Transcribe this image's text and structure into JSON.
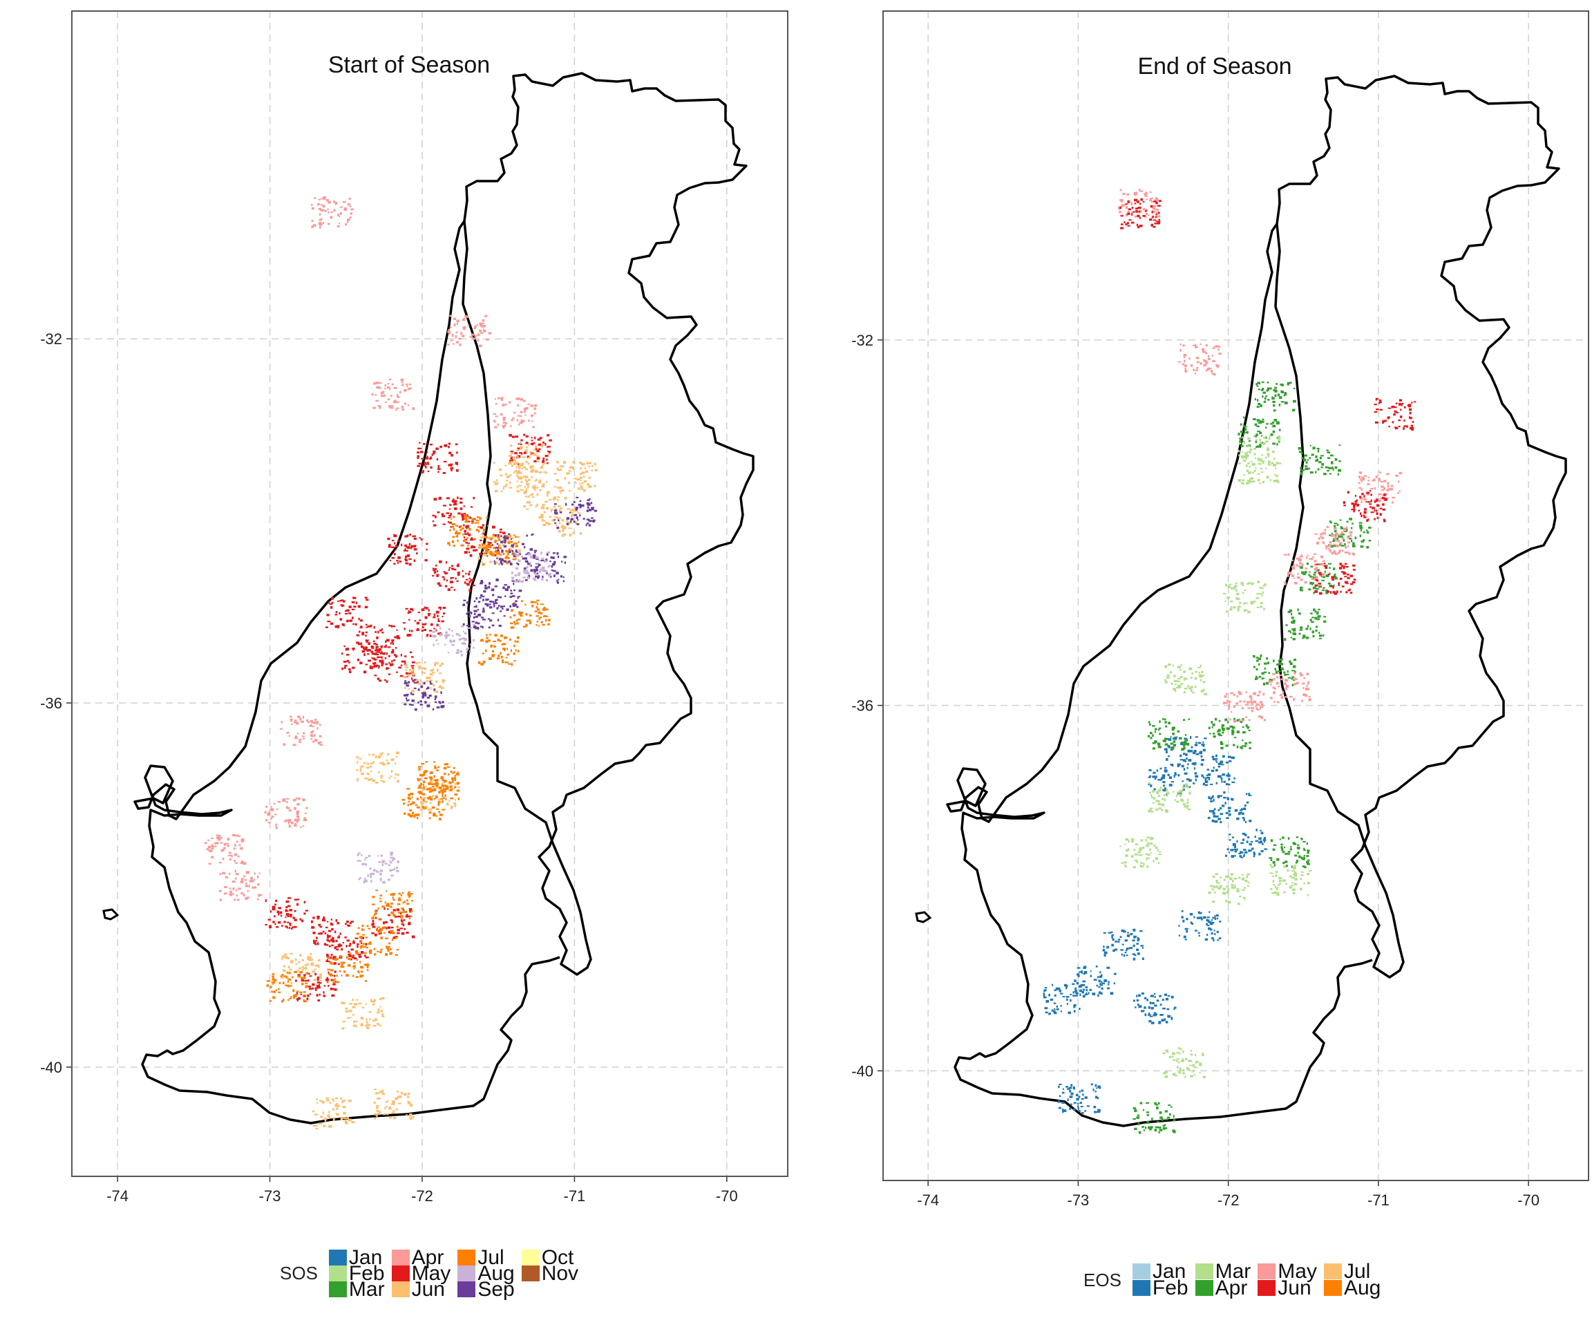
{
  "chart_data": [
    {
      "type": "scatter",
      "title": "Start of Season",
      "xlabel": "",
      "ylabel": "",
      "xlim": [
        -74.3,
        -69.6
      ],
      "ylim": [
        -41.2,
        -28.4
      ],
      "xticks": [
        -74,
        -73,
        -72,
        -71,
        -70
      ],
      "yticks": [
        -32,
        -36,
        -40
      ],
      "xtick_labels": [
        "-74",
        "-73",
        "-72",
        "-71",
        "-70"
      ],
      "ytick_labels": [
        "-32",
        "-36",
        "-40"
      ],
      "grid": true,
      "legend": {
        "title": "SOS",
        "position": "bottom",
        "items": [
          {
            "label": "Jan",
            "color": "#1F78B4"
          },
          {
            "label": "Feb",
            "color": "#B2DF8A"
          },
          {
            "label": "Mar",
            "color": "#33A02C"
          },
          {
            "label": "Apr",
            "color": "#FB9A99"
          },
          {
            "label": "May",
            "color": "#E31A1C"
          },
          {
            "label": "Jun",
            "color": "#FDBF6F"
          },
          {
            "label": "Jul",
            "color": "#FF7F00"
          },
          {
            "label": "Aug",
            "color": "#CAB2D6"
          },
          {
            "label": "Sep",
            "color": "#6A3D9A"
          },
          {
            "label": "Oct",
            "color": "#FFFF99"
          },
          {
            "label": "Nov",
            "color": "#B15928"
          }
        ]
      },
      "series": [
        {
          "name": "May",
          "color": "#E31A1C",
          "points": [
            [
              -72.1,
              -34.3
            ],
            [
              -71.8,
              -34.6
            ],
            [
              -72.5,
              -35.0
            ],
            [
              -72.3,
              -35.3
            ],
            [
              -72.4,
              -35.5
            ],
            [
              -72.2,
              -35.6
            ],
            [
              -72.0,
              -35.1
            ],
            [
              -71.9,
              -33.3
            ],
            [
              -71.8,
              -33.9
            ],
            [
              -72.9,
              -38.3
            ],
            [
              -72.6,
              -38.5
            ],
            [
              -72.2,
              -38.4
            ],
            [
              -72.7,
              -39.1
            ],
            [
              -72.5,
              -38.7
            ],
            [
              -71.6,
              -34.2
            ],
            [
              -71.3,
              -33.2
            ]
          ]
        },
        {
          "name": "Jun",
          "color": "#FDBF6F",
          "points": [
            [
              -71.2,
              -33.7
            ],
            [
              -71.1,
              -34.0
            ],
            [
              -71.4,
              -33.5
            ],
            [
              -71.5,
              -34.3
            ],
            [
              -72.0,
              -35.7
            ],
            [
              -72.3,
              -36.7
            ],
            [
              -71.9,
              -37.0
            ],
            [
              -72.8,
              -38.9
            ],
            [
              -72.4,
              -39.4
            ],
            [
              -72.2,
              -40.4
            ],
            [
              -72.6,
              -40.5
            ],
            [
              -71.0,
              -33.5
            ],
            [
              -71.3,
              -33.3
            ]
          ]
        },
        {
          "name": "Jul",
          "color": "#FF7F00",
          "points": [
            [
              -71.9,
              -36.8
            ],
            [
              -71.9,
              -36.9
            ],
            [
              -72.0,
              -37.1
            ],
            [
              -72.3,
              -38.6
            ],
            [
              -72.5,
              -38.9
            ],
            [
              -72.9,
              -39.1
            ],
            [
              -71.5,
              -34.3
            ],
            [
              -71.3,
              -35.0
            ],
            [
              -71.5,
              -35.4
            ],
            [
              -72.2,
              -38.2
            ],
            [
              -71.7,
              -34.1
            ]
          ]
        },
        {
          "name": "Apr",
          "color": "#FB9A99",
          "points": [
            [
              -72.6,
              -30.6
            ],
            [
              -71.7,
              -31.9
            ],
            [
              -72.2,
              -32.6
            ],
            [
              -71.4,
              -32.8
            ],
            [
              -72.8,
              -36.3
            ],
            [
              -73.3,
              -37.6
            ],
            [
              -73.2,
              -38.0
            ],
            [
              -72.9,
              -37.2
            ]
          ]
        },
        {
          "name": "Sep",
          "color": "#6A3D9A",
          "points": [
            [
              -71.4,
              -34.3
            ],
            [
              -71.6,
              -35.0
            ],
            [
              -71.5,
              -34.8
            ],
            [
              -72.0,
              -35.9
            ],
            [
              -71.2,
              -34.5
            ],
            [
              -71.0,
              -33.9
            ]
          ]
        },
        {
          "name": "Aug",
          "color": "#CAB2D6",
          "points": [
            [
              -71.3,
              -34.5
            ],
            [
              -71.8,
              -35.3
            ],
            [
              -72.3,
              -37.8
            ]
          ]
        }
      ]
    },
    {
      "type": "scatter",
      "title": "End of Season",
      "xlabel": "",
      "ylabel": "",
      "xlim": [
        -74.3,
        -69.6
      ],
      "ylim": [
        -41.2,
        -28.4
      ],
      "xticks": [
        -74,
        -73,
        -72,
        -71,
        -70
      ],
      "yticks": [
        -32,
        -36,
        -40
      ],
      "xtick_labels": [
        "-74",
        "-73",
        "-72",
        "-71",
        "-70"
      ],
      "ytick_labels": [
        "-32",
        "-36",
        "-40"
      ],
      "grid": true,
      "legend": {
        "title": "EOS",
        "position": "bottom",
        "items": [
          {
            "label": "Jan",
            "color": "#A6CEE3"
          },
          {
            "label": "Feb",
            "color": "#1F78B4"
          },
          {
            "label": "Mar",
            "color": "#B2DF8A"
          },
          {
            "label": "Apr",
            "color": "#33A02C"
          },
          {
            "label": "May",
            "color": "#FB9A99"
          },
          {
            "label": "Jun",
            "color": "#E31A1C"
          },
          {
            "label": "Jul",
            "color": "#FDBF6F"
          },
          {
            "label": "Aug",
            "color": "#FF7F00"
          }
        ]
      },
      "series": [
        {
          "name": "Feb",
          "color": "#1F78B4",
          "points": [
            [
              -72.4,
              -36.8
            ],
            [
              -72.0,
              -37.1
            ],
            [
              -71.9,
              -37.5
            ],
            [
              -72.7,
              -38.6
            ],
            [
              -72.9,
              -39.0
            ],
            [
              -72.5,
              -39.3
            ],
            [
              -73.1,
              -39.2
            ],
            [
              -72.2,
              -38.4
            ],
            [
              -73.0,
              -40.3
            ],
            [
              -72.3,
              -36.5
            ],
            [
              -72.1,
              -36.7
            ]
          ]
        },
        {
          "name": "Apr",
          "color": "#33A02C",
          "points": [
            [
              -71.4,
              -33.3
            ],
            [
              -71.2,
              -34.1
            ],
            [
              -71.5,
              -35.1
            ],
            [
              -71.7,
              -35.6
            ],
            [
              -72.0,
              -36.3
            ],
            [
              -71.4,
              -34.6
            ],
            [
              -71.8,
              -33.0
            ],
            [
              -71.7,
              -32.6
            ],
            [
              -72.4,
              -36.3
            ],
            [
              -72.5,
              -40.5
            ],
            [
              -71.6,
              -37.6
            ]
          ]
        },
        {
          "name": "May",
          "color": "#FB9A99",
          "points": [
            [
              -71.5,
              -34.5
            ],
            [
              -71.3,
              -34.2
            ],
            [
              -71.9,
              -36.0
            ],
            [
              -71.6,
              -35.8
            ],
            [
              -71.0,
              -33.6
            ],
            [
              -72.6,
              -30.5
            ],
            [
              -72.2,
              -32.2
            ]
          ]
        },
        {
          "name": "Mar",
          "color": "#B2DF8A",
          "points": [
            [
              -71.8,
              -33.4
            ],
            [
              -72.3,
              -35.7
            ],
            [
              -71.9,
              -34.8
            ],
            [
              -72.4,
              -37.0
            ],
            [
              -72.0,
              -38.0
            ],
            [
              -72.6,
              -37.6
            ],
            [
              -71.6,
              -37.9
            ],
            [
              -72.3,
              -39.9
            ],
            [
              -71.8,
              -33.2
            ]
          ]
        },
        {
          "name": "Jun",
          "color": "#E31A1C",
          "points": [
            [
              -71.3,
              -34.6
            ],
            [
              -72.6,
              -30.6
            ],
            [
              -70.9,
              -32.8
            ],
            [
              -71.1,
              -33.8
            ]
          ]
        }
      ]
    }
  ]
}
